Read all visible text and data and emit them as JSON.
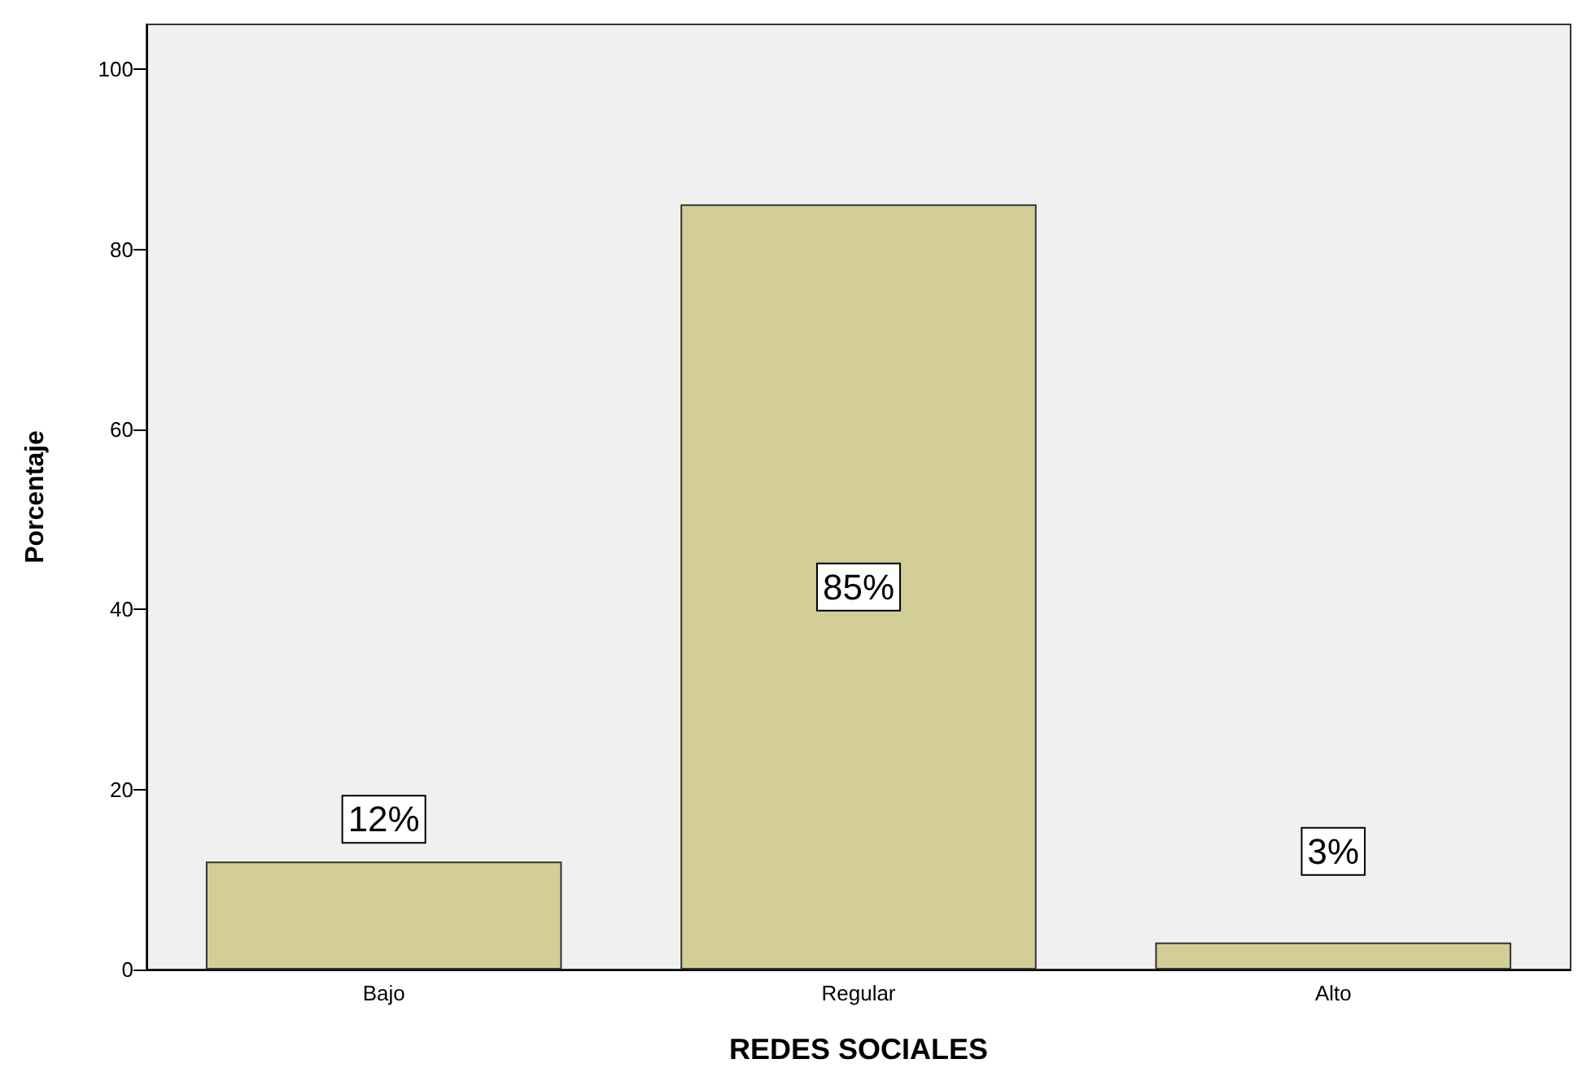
{
  "chart_data": {
    "type": "bar",
    "xlabel": "REDES SOCIALES",
    "ylabel": "Porcentaje",
    "categories": [
      "Bajo",
      "Regular",
      "Alto"
    ],
    "values": [
      12,
      85,
      3
    ],
    "value_labels": [
      "12%",
      "85%",
      "3%"
    ],
    "color": "#d3ce97",
    "ylim": [
      0,
      105
    ],
    "yticks": [
      0,
      20,
      40,
      60,
      80,
      100
    ],
    "grid": false
  }
}
